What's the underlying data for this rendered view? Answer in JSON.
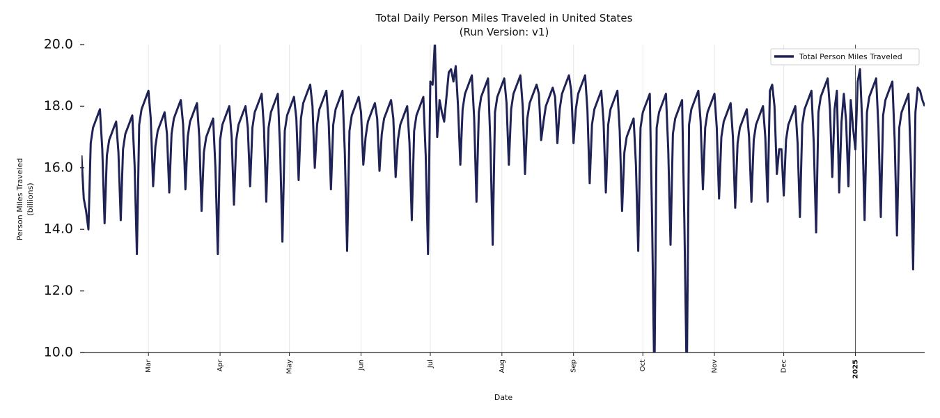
{
  "chart_data": {
    "type": "line",
    "title": "Total Daily Person Miles Traveled in United States",
    "subtitle": "(Run Version: v1)",
    "xlabel": "Date",
    "ylabel": "Person Miles Traveled",
    "ylabel_units": "(billions)",
    "x_start": "2024-02-01",
    "x_end": "2025-01-31",
    "x_frequency": "daily",
    "ylim": [
      10.0,
      20.0
    ],
    "yticks": [
      "10.0",
      "12.0",
      "14.0",
      "16.0",
      "18.0",
      "20.0"
    ],
    "xticks": [
      {
        "label": "Mar",
        "date": "2024-03-01",
        "bold": false
      },
      {
        "label": "Apr",
        "date": "2024-04-01",
        "bold": false
      },
      {
        "label": "May",
        "date": "2024-05-01",
        "bold": false
      },
      {
        "label": "Jun",
        "date": "2024-06-01",
        "bold": false
      },
      {
        "label": "Jul",
        "date": "2024-07-01",
        "bold": false
      },
      {
        "label": "Aug",
        "date": "2024-08-01",
        "bold": false
      },
      {
        "label": "Sep",
        "date": "2024-09-01",
        "bold": false
      },
      {
        "label": "Oct",
        "date": "2024-10-01",
        "bold": false
      },
      {
        "label": "Nov",
        "date": "2024-11-01",
        "bold": false
      },
      {
        "label": "Dec",
        "date": "2024-12-01",
        "bold": false
      },
      {
        "label": "2025",
        "date": "2025-01-01",
        "bold": true
      }
    ],
    "grid": "vertical",
    "legend": {
      "placement": "top-right",
      "entries": [
        "Total Person Miles Traveled"
      ]
    },
    "series": [
      {
        "name": "Total Person Miles Traveled",
        "color": "#1f2255",
        "values": [
          16.4,
          15.0,
          14.6,
          14.0,
          16.8,
          17.3,
          17.5,
          17.7,
          17.9,
          16.6,
          14.2,
          16.4,
          16.9,
          17.1,
          17.3,
          17.5,
          16.5,
          14.3,
          16.6,
          17.1,
          17.3,
          17.5,
          17.7,
          16.1,
          13.2,
          17.4,
          17.9,
          18.1,
          18.3,
          18.5,
          17.6,
          15.4,
          16.7,
          17.2,
          17.4,
          17.6,
          17.8,
          17.1,
          15.2,
          17.1,
          17.6,
          17.8,
          18.0,
          18.2,
          17.4,
          15.3,
          17.0,
          17.5,
          17.7,
          17.9,
          18.1,
          17.0,
          14.6,
          16.5,
          17.0,
          17.2,
          17.4,
          17.6,
          16.0,
          13.2,
          16.9,
          17.4,
          17.6,
          17.8,
          18.0,
          17.0,
          14.8,
          16.9,
          17.4,
          17.6,
          17.8,
          18.0,
          17.3,
          15.4,
          17.3,
          17.8,
          18.0,
          18.2,
          18.4,
          17.3,
          14.9,
          17.3,
          17.8,
          18.0,
          18.2,
          18.4,
          16.6,
          13.6,
          17.2,
          17.7,
          17.9,
          18.1,
          18.3,
          17.6,
          15.6,
          17.6,
          18.1,
          18.3,
          18.5,
          18.7,
          18.0,
          16.0,
          17.4,
          17.9,
          18.1,
          18.3,
          18.5,
          17.5,
          15.3,
          17.4,
          17.9,
          18.1,
          18.3,
          18.5,
          16.5,
          13.3,
          17.2,
          17.7,
          17.9,
          18.1,
          18.3,
          17.8,
          16.1,
          17.0,
          17.5,
          17.7,
          17.9,
          18.1,
          17.6,
          15.9,
          17.1,
          17.6,
          17.8,
          18.0,
          18.2,
          17.6,
          15.7,
          16.9,
          17.4,
          17.6,
          17.8,
          18.0,
          16.8,
          14.3,
          17.2,
          17.7,
          17.9,
          18.1,
          18.3,
          16.4,
          13.2,
          18.8,
          18.7,
          20.1,
          17.0,
          18.2,
          17.8,
          17.5,
          18.3,
          19.1,
          19.2,
          18.8,
          19.3,
          18.0,
          16.1,
          17.9,
          18.4,
          18.6,
          18.8,
          19.0,
          17.6,
          14.9,
          17.8,
          18.3,
          18.5,
          18.7,
          18.9,
          16.8,
          13.5,
          17.8,
          18.3,
          18.5,
          18.7,
          18.9,
          18.1,
          16.1,
          17.9,
          18.4,
          18.6,
          18.8,
          19.0,
          18.0,
          15.8,
          17.6,
          18.1,
          18.3,
          18.5,
          18.7,
          18.4,
          16.9,
          17.5,
          18.0,
          18.2,
          18.4,
          18.6,
          18.3,
          16.8,
          17.9,
          18.4,
          18.6,
          18.8,
          19.0,
          18.5,
          16.8,
          17.9,
          18.4,
          18.6,
          18.8,
          19.0,
          17.9,
          15.5,
          17.4,
          17.9,
          18.1,
          18.3,
          18.5,
          17.5,
          15.2,
          17.4,
          17.9,
          18.1,
          18.3,
          18.5,
          17.2,
          14.6,
          16.5,
          17.0,
          17.2,
          17.4,
          17.6,
          16.1,
          13.3,
          17.3,
          17.8,
          18.0,
          18.2,
          18.4,
          14.3,
          9.0,
          17.3,
          17.8,
          18.0,
          18.2,
          18.4,
          16.6,
          13.5,
          17.1,
          17.6,
          17.8,
          18.0,
          18.2,
          14.2,
          9.0,
          17.4,
          17.9,
          18.1,
          18.3,
          18.5,
          17.5,
          15.3,
          17.3,
          17.8,
          18.0,
          18.2,
          18.4,
          17.3,
          15.0,
          17.0,
          17.5,
          17.7,
          17.9,
          18.1,
          17.0,
          14.7,
          16.8,
          17.3,
          17.5,
          17.7,
          17.9,
          17.0,
          14.9,
          16.9,
          17.4,
          17.6,
          17.8,
          18.0,
          17.0,
          14.9,
          18.5,
          18.7,
          18.0,
          15.8,
          16.6,
          16.6,
          15.1,
          16.9,
          17.4,
          17.6,
          17.8,
          18.0,
          16.8,
          14.4,
          17.4,
          17.9,
          18.1,
          18.3,
          18.5,
          16.8,
          13.9,
          17.8,
          18.3,
          18.5,
          18.7,
          18.9,
          17.9,
          15.7,
          17.9,
          18.5,
          15.2,
          17.5,
          18.4,
          17.5,
          15.4,
          18.2,
          17.3,
          16.6,
          18.8,
          19.2,
          17.4,
          14.3,
          17.8,
          18.3,
          18.5,
          18.7,
          18.9,
          17.3,
          14.4,
          17.7,
          18.2,
          18.4,
          18.6,
          18.8,
          16.9,
          13.8,
          17.3,
          17.8,
          18.0,
          18.2,
          18.4,
          16.2,
          12.7,
          17.8,
          18.6,
          18.5,
          18.2,
          18.0
        ]
      }
    ]
  }
}
